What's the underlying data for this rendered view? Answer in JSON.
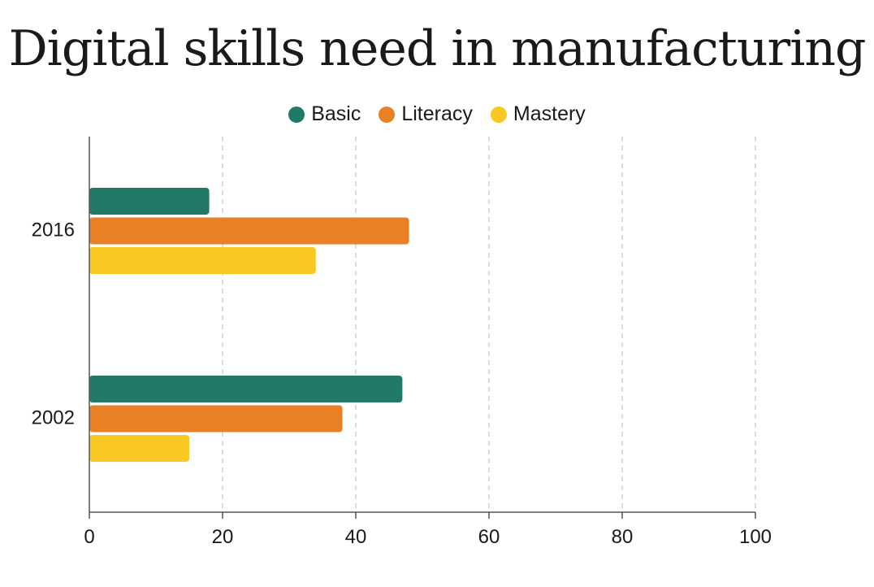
{
  "chart_data": {
    "type": "bar",
    "orientation": "horizontal",
    "title": "Digital skills need in manufacturing",
    "xlabel": "",
    "ylabel": "",
    "categories": [
      "2016",
      "2002"
    ],
    "series": [
      {
        "name": "Basic",
        "color": "#217a67",
        "values": [
          18,
          47
        ]
      },
      {
        "name": "Literacy",
        "color": "#e88025",
        "values": [
          48,
          38
        ]
      },
      {
        "name": "Mastery",
        "color": "#f9c823",
        "values": [
          34,
          15
        ]
      }
    ],
    "xlim": [
      0,
      100
    ],
    "xticks": [
      "0",
      "20",
      "40",
      "60",
      "80",
      "100"
    ],
    "grid": "vertical-dashed",
    "legend_position": "top-center"
  }
}
